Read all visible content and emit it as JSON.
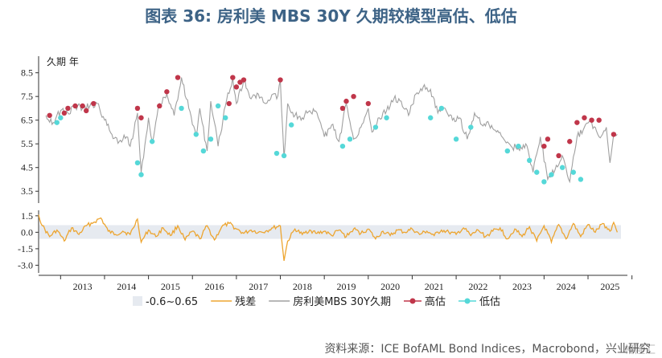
{
  "title": "图表 36: 房利美 MBS 30Y 久期较模型高估、低估",
  "source": "资料来源：ICE BofAML Bond Indices，Macrobond，兴业研究",
  "watermark": "格隆汇",
  "colors": {
    "duration": "#a0a0a0",
    "high": "#c0364a",
    "low": "#55d8d8",
    "residual": "#eda530",
    "band": "#e6eaf0",
    "title": "#3d6386"
  },
  "chart_data": [
    {
      "type": "line",
      "title": "",
      "ylabel": "久期  年",
      "ylim": [
        3.0,
        9.2
      ],
      "yticks": [
        "8.5",
        "7.5",
        "6.5",
        "5.5",
        "4.5",
        "3.5"
      ],
      "x_range": [
        "2012-07",
        "2025-10"
      ],
      "series": [
        {
          "name": "房利美MBS 30Y久期",
          "points": [
            [
              "2012-09",
              6.7
            ],
            [
              "2012-11",
              6.4
            ],
            [
              "2013-01",
              6.9
            ],
            [
              "2013-03",
              6.8
            ],
            [
              "2013-05",
              7.1
            ],
            [
              "2013-07",
              7.0
            ],
            [
              "2013-09",
              7.1
            ],
            [
              "2013-11",
              7.2
            ],
            [
              "2014-01",
              6.5
            ],
            [
              "2014-03",
              5.9
            ],
            [
              "2014-05",
              5.6
            ],
            [
              "2014-07",
              5.8
            ],
            [
              "2014-08",
              5.4
            ],
            [
              "2014-10",
              6.8
            ],
            [
              "2014-11",
              4.3
            ],
            [
              "2015-01",
              6.6
            ],
            [
              "2015-02",
              5.6
            ],
            [
              "2015-04",
              7.2
            ],
            [
              "2015-06",
              7.6
            ],
            [
              "2015-08",
              6.7
            ],
            [
              "2015-10",
              8.3
            ],
            [
              "2015-12",
              7.0
            ],
            [
              "2016-02",
              5.8
            ],
            [
              "2016-03",
              7.0
            ],
            [
              "2016-05",
              5.2
            ],
            [
              "2016-06",
              7.3
            ],
            [
              "2016-08",
              5.4
            ],
            [
              "2016-10",
              7.1
            ],
            [
              "2016-12",
              8.3
            ],
            [
              "2017-01",
              7.2
            ],
            [
              "2017-03",
              8.2
            ],
            [
              "2017-05",
              7.4
            ],
            [
              "2017-07",
              7.6
            ],
            [
              "2017-09",
              7.2
            ],
            [
              "2017-11",
              7.6
            ],
            [
              "2017-12",
              7.4
            ],
            [
              "2018-01",
              8.2
            ],
            [
              "2018-02",
              4.9
            ],
            [
              "2018-03",
              7.2
            ],
            [
              "2018-05",
              6.7
            ],
            [
              "2018-07",
              6.6
            ],
            [
              "2018-09",
              6.9
            ],
            [
              "2018-11",
              6.8
            ],
            [
              "2019-01",
              5.8
            ],
            [
              "2019-03",
              6.3
            ],
            [
              "2019-05",
              5.6
            ],
            [
              "2019-07",
              7.2
            ],
            [
              "2019-09",
              5.7
            ],
            [
              "2019-11",
              6.2
            ],
            [
              "2020-01",
              7.0
            ],
            [
              "2020-02",
              6.0
            ],
            [
              "2020-04",
              6.6
            ],
            [
              "2020-06",
              6.9
            ],
            [
              "2020-08",
              7.4
            ],
            [
              "2020-10",
              7.3
            ],
            [
              "2020-12",
              6.7
            ],
            [
              "2021-02",
              7.6
            ],
            [
              "2021-04",
              7.9
            ],
            [
              "2021-06",
              7.8
            ],
            [
              "2021-08",
              6.8
            ],
            [
              "2021-10",
              7.0
            ],
            [
              "2021-12",
              6.5
            ],
            [
              "2022-02",
              6.6
            ],
            [
              "2022-04",
              5.7
            ],
            [
              "2022-06",
              6.8
            ],
            [
              "2022-08",
              6.3
            ],
            [
              "2022-10",
              6.3
            ],
            [
              "2022-12",
              6.0
            ],
            [
              "2023-02",
              5.7
            ],
            [
              "2023-04",
              5.4
            ],
            [
              "2023-06",
              5.3
            ],
            [
              "2023-08",
              5.5
            ],
            [
              "2023-10",
              4.3
            ],
            [
              "2023-12",
              5.8
            ],
            [
              "2024-02",
              4.0
            ],
            [
              "2024-04",
              4.4
            ],
            [
              "2024-06",
              5.0
            ],
            [
              "2024-08",
              3.9
            ],
            [
              "2024-10",
              5.8
            ],
            [
              "2024-12",
              6.2
            ],
            [
              "2025-02",
              6.4
            ],
            [
              "2025-04",
              5.8
            ],
            [
              "2025-06",
              6.2
            ],
            [
              "2025-07",
              4.7
            ],
            [
              "2025-08",
              5.9
            ],
            [
              "2025-09",
              5.9
            ]
          ]
        },
        {
          "name": "高估",
          "marker": "dot",
          "points": [
            [
              "2012-10",
              6.7
            ],
            [
              "2013-02",
              6.8
            ],
            [
              "2013-03",
              7.0
            ],
            [
              "2013-05",
              7.1
            ],
            [
              "2013-07",
              7.1
            ],
            [
              "2013-08",
              6.9
            ],
            [
              "2013-10",
              7.2
            ],
            [
              "2014-10",
              7.0
            ],
            [
              "2014-11",
              6.6
            ],
            [
              "2015-04",
              7.1
            ],
            [
              "2015-06",
              7.7
            ],
            [
              "2015-09",
              8.3
            ],
            [
              "2016-11",
              7.2
            ],
            [
              "2016-12",
              8.3
            ],
            [
              "2017-01",
              7.9
            ],
            [
              "2017-02",
              8.1
            ],
            [
              "2017-03",
              8.2
            ],
            [
              "2018-01",
              8.2
            ],
            [
              "2019-06",
              7.0
            ],
            [
              "2019-07",
              7.3
            ],
            [
              "2019-09",
              7.5
            ],
            [
              "2020-01",
              7.2
            ],
            [
              "2024-01",
              5.4
            ],
            [
              "2024-02",
              5.7
            ],
            [
              "2024-05",
              5.0
            ],
            [
              "2024-08",
              5.6
            ],
            [
              "2024-10",
              6.4
            ],
            [
              "2024-12",
              6.6
            ],
            [
              "2025-02",
              6.5
            ],
            [
              "2025-04",
              6.5
            ],
            [
              "2025-08",
              5.9
            ]
          ]
        },
        {
          "name": "低估",
          "marker": "dot",
          "points": [
            [
              "2012-12",
              6.4
            ],
            [
              "2013-01",
              6.6
            ],
            [
              "2014-10",
              4.7
            ],
            [
              "2014-11",
              4.2
            ],
            [
              "2015-02",
              5.6
            ],
            [
              "2015-10",
              7.0
            ],
            [
              "2016-02",
              5.9
            ],
            [
              "2016-04",
              5.2
            ],
            [
              "2016-06",
              5.7
            ],
            [
              "2016-08",
              7.1
            ],
            [
              "2016-10",
              6.6
            ],
            [
              "2017-12",
              5.1
            ],
            [
              "2018-02",
              5.0
            ],
            [
              "2018-04",
              6.3
            ],
            [
              "2019-06",
              5.4
            ],
            [
              "2019-08",
              5.7
            ],
            [
              "2020-03",
              6.2
            ],
            [
              "2020-06",
              6.6
            ],
            [
              "2021-06",
              6.6
            ],
            [
              "2021-09",
              7.0
            ],
            [
              "2022-01",
              5.7
            ],
            [
              "2022-05",
              6.2
            ],
            [
              "2023-03",
              5.2
            ],
            [
              "2023-06",
              5.4
            ],
            [
              "2023-09",
              4.8
            ],
            [
              "2023-11",
              4.3
            ],
            [
              "2024-01",
              3.9
            ],
            [
              "2024-03",
              4.2
            ],
            [
              "2024-06",
              4.5
            ],
            [
              "2024-09",
              4.3
            ],
            [
              "2024-11",
              4.0
            ]
          ]
        }
      ]
    },
    {
      "type": "area",
      "ylim": [
        -3.7,
        2.0
      ],
      "yticks": [
        "1.5",
        "0.0",
        "-1.5",
        "-3.0"
      ],
      "band": [
        -0.6,
        0.65
      ],
      "series": [
        {
          "name": "残差",
          "points": [
            [
              "2012-07",
              1.6
            ],
            [
              "2012-08",
              0.6
            ],
            [
              "2012-10",
              -0.4
            ],
            [
              "2012-12",
              0.2
            ],
            [
              "2013-02",
              -0.8
            ],
            [
              "2013-04",
              0.4
            ],
            [
              "2013-06",
              -0.2
            ],
            [
              "2013-08",
              0.6
            ],
            [
              "2013-10",
              0.9
            ],
            [
              "2013-12",
              1.3
            ],
            [
              "2014-02",
              0.1
            ],
            [
              "2014-04",
              -0.2
            ],
            [
              "2014-06",
              0.1
            ],
            [
              "2014-08",
              -0.2
            ],
            [
              "2014-10",
              1.2
            ],
            [
              "2014-11",
              -0.9
            ],
            [
              "2015-01",
              0.2
            ],
            [
              "2015-03",
              -0.4
            ],
            [
              "2015-05",
              0.4
            ],
            [
              "2015-07",
              -0.3
            ],
            [
              "2015-09",
              0.6
            ],
            [
              "2015-11",
              -0.7
            ],
            [
              "2016-01",
              0.1
            ],
            [
              "2016-03",
              -0.6
            ],
            [
              "2016-05",
              0.6
            ],
            [
              "2016-07",
              -0.7
            ],
            [
              "2016-09",
              0.5
            ],
            [
              "2016-11",
              0.8
            ],
            [
              "2017-01",
              0.3
            ],
            [
              "2017-03",
              -0.1
            ],
            [
              "2017-05",
              0.2
            ],
            [
              "2017-07",
              0.0
            ],
            [
              "2017-09",
              0.1
            ],
            [
              "2017-11",
              0.4
            ],
            [
              "2018-01",
              0.6
            ],
            [
              "2018-02",
              -2.6
            ],
            [
              "2018-03",
              -0.8
            ],
            [
              "2018-05",
              0.3
            ],
            [
              "2018-07",
              -0.2
            ],
            [
              "2018-09",
              0.2
            ],
            [
              "2018-11",
              -0.1
            ],
            [
              "2019-01",
              0.1
            ],
            [
              "2019-03",
              -0.3
            ],
            [
              "2019-05",
              0.2
            ],
            [
              "2019-07",
              -0.4
            ],
            [
              "2019-09",
              0.3
            ],
            [
              "2019-11",
              -0.1
            ],
            [
              "2020-01",
              0.3
            ],
            [
              "2020-03",
              -0.6
            ],
            [
              "2020-05",
              0.1
            ],
            [
              "2020-07",
              -0.3
            ],
            [
              "2020-09",
              0.2
            ],
            [
              "2020-11",
              0.0
            ],
            [
              "2021-01",
              0.3
            ],
            [
              "2021-03",
              -0.2
            ],
            [
              "2021-05",
              0.1
            ],
            [
              "2021-07",
              -0.3
            ],
            [
              "2021-09",
              0.2
            ],
            [
              "2021-11",
              0.0
            ],
            [
              "2022-01",
              -0.2
            ],
            [
              "2022-03",
              0.4
            ],
            [
              "2022-05",
              -0.3
            ],
            [
              "2022-07",
              0.2
            ],
            [
              "2022-09",
              -0.4
            ],
            [
              "2022-11",
              0.1
            ],
            [
              "2023-01",
              0.4
            ],
            [
              "2023-03",
              -0.6
            ],
            [
              "2023-05",
              0.3
            ],
            [
              "2023-07",
              -0.4
            ],
            [
              "2023-09",
              0.5
            ],
            [
              "2023-11",
              -0.8
            ],
            [
              "2024-01",
              0.6
            ],
            [
              "2024-03",
              -0.9
            ],
            [
              "2024-05",
              0.7
            ],
            [
              "2024-07",
              -0.6
            ],
            [
              "2024-09",
              0.8
            ],
            [
              "2024-11",
              -0.4
            ],
            [
              "2025-01",
              0.7
            ],
            [
              "2025-03",
              0.0
            ],
            [
              "2025-05",
              0.8
            ],
            [
              "2025-07",
              0.1
            ],
            [
              "2025-08",
              0.9
            ],
            [
              "2025-09",
              0.0
            ]
          ]
        }
      ]
    }
  ],
  "x_axis": {
    "labels": [
      "2013",
      "2014",
      "2015",
      "2016",
      "2017",
      "2018",
      "2019",
      "2020",
      "2021",
      "2022",
      "2023",
      "2024",
      "2025"
    ]
  },
  "legend": [
    {
      "label": "-0.6~0.65",
      "kind": "band"
    },
    {
      "label": "残差",
      "kind": "residual"
    },
    {
      "label": "房利美MBS 30Y久期",
      "kind": "duration"
    },
    {
      "label": "高估",
      "kind": "high"
    },
    {
      "label": "低估",
      "kind": "low"
    }
  ]
}
